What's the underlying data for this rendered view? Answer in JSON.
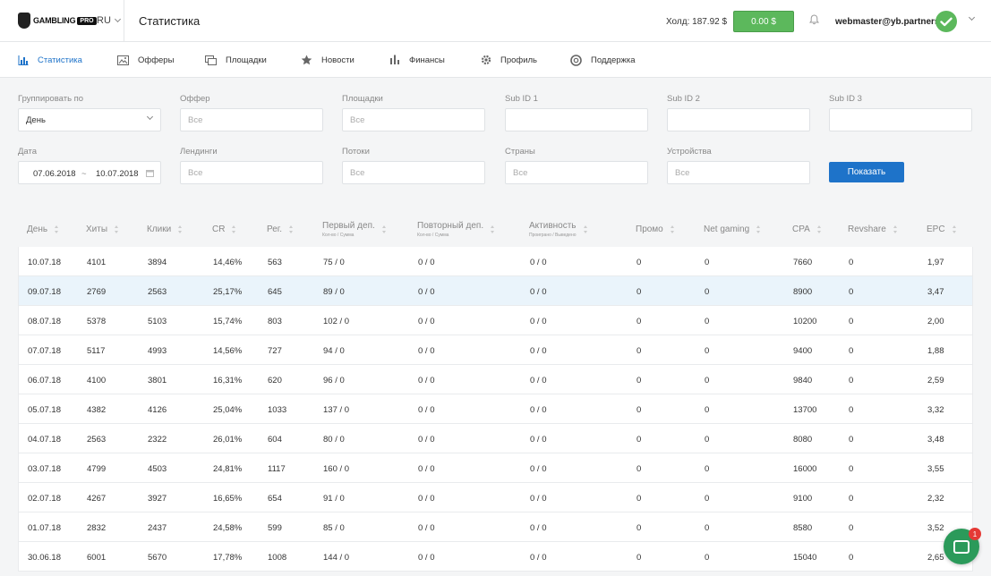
{
  "header": {
    "logo_text": "GAMBLING",
    "logo_badge": "PRO",
    "language": "RU",
    "page_title": "Статистика",
    "hold_label": "Холд: 187.92 $",
    "balance": "0.00 $",
    "email": "webmaster@yb.partners"
  },
  "nav": [
    {
      "label": "Статистика",
      "icon": "bar-chart-icon",
      "active": true
    },
    {
      "label": "Офферы",
      "icon": "image-icon"
    },
    {
      "label": "Площадки",
      "icon": "windows-icon"
    },
    {
      "label": "Новости",
      "icon": "star-icon"
    },
    {
      "label": "Финансы",
      "icon": "finance-chart-icon"
    },
    {
      "label": "Профиль",
      "icon": "gear-icon"
    },
    {
      "label": "Поддержка",
      "icon": "support-icon"
    }
  ],
  "filters": {
    "group_by": {
      "label": "Группировать по",
      "value": "День"
    },
    "offer": {
      "label": "Оффер",
      "placeholder": "Все"
    },
    "sites": {
      "label": "Площадки",
      "placeholder": "Все"
    },
    "sub1": {
      "label": "Sub ID 1",
      "value": ""
    },
    "sub2": {
      "label": "Sub ID 2",
      "value": ""
    },
    "sub3": {
      "label": "Sub ID 3",
      "value": ""
    },
    "date": {
      "label": "Дата",
      "from": "07.06.2018",
      "sep": "~",
      "to": "10.07.2018"
    },
    "landings": {
      "label": "Лендинги",
      "placeholder": "Все"
    },
    "streams": {
      "label": "Потоки",
      "placeholder": "Все"
    },
    "countries": {
      "label": "Страны",
      "placeholder": "Все"
    },
    "devices": {
      "label": "Устройства",
      "placeholder": "Все"
    },
    "show_button": "Показать"
  },
  "table": {
    "columns": [
      {
        "label": "День"
      },
      {
        "label": "Хиты"
      },
      {
        "label": "Клики"
      },
      {
        "label": "CR"
      },
      {
        "label": "Рег."
      },
      {
        "label": "Первый деп.",
        "sub": "Кол-во / Сумма"
      },
      {
        "label": "Повторный деп.",
        "sub": "Кол-во / Сумма"
      },
      {
        "label": "Активность",
        "sub": "Проиграно / Выведено"
      },
      {
        "label": "Промо"
      },
      {
        "label": "Net gaming"
      },
      {
        "label": "CPA"
      },
      {
        "label": "Revshare"
      },
      {
        "label": "EPC"
      }
    ],
    "rows": [
      [
        "10.07.18",
        "4101",
        "3894",
        "14,46%",
        "563",
        "75 / 0",
        "0 / 0",
        "0 / 0",
        "0",
        "0",
        "7660",
        "0",
        "1,97"
      ],
      [
        "09.07.18",
        "2769",
        "2563",
        "25,17%",
        "645",
        "89 / 0",
        "0 / 0",
        "0 / 0",
        "0",
        "0",
        "8900",
        "0",
        "3,47"
      ],
      [
        "08.07.18",
        "5378",
        "5103",
        "15,74%",
        "803",
        "102 / 0",
        "0 / 0",
        "0 / 0",
        "0",
        "0",
        "10200",
        "0",
        "2,00"
      ],
      [
        "07.07.18",
        "5117",
        "4993",
        "14,56%",
        "727",
        "94 / 0",
        "0 / 0",
        "0 / 0",
        "0",
        "0",
        "9400",
        "0",
        "1,88"
      ],
      [
        "06.07.18",
        "4100",
        "3801",
        "16,31%",
        "620",
        "96 / 0",
        "0 / 0",
        "0 / 0",
        "0",
        "0",
        "9840",
        "0",
        "2,59"
      ],
      [
        "05.07.18",
        "4382",
        "4126",
        "25,04%",
        "1033",
        "137 / 0",
        "0 / 0",
        "0 / 0",
        "0",
        "0",
        "13700",
        "0",
        "3,32"
      ],
      [
        "04.07.18",
        "2563",
        "2322",
        "26,01%",
        "604",
        "80 / 0",
        "0 / 0",
        "0 / 0",
        "0",
        "0",
        "8080",
        "0",
        "3,48"
      ],
      [
        "03.07.18",
        "4799",
        "4503",
        "24,81%",
        "1117",
        "160 / 0",
        "0 / 0",
        "0 / 0",
        "0",
        "0",
        "16000",
        "0",
        "3,55"
      ],
      [
        "02.07.18",
        "4267",
        "3927",
        "16,65%",
        "654",
        "91 / 0",
        "0 / 0",
        "0 / 0",
        "0",
        "0",
        "9100",
        "0",
        "2,32"
      ],
      [
        "01.07.18",
        "2832",
        "2437",
        "24,58%",
        "599",
        "85 / 0",
        "0 / 0",
        "0 / 0",
        "0",
        "0",
        "8580",
        "0",
        "3,52"
      ],
      [
        "30.06.18",
        "6001",
        "5670",
        "17,78%",
        "1008",
        "144 / 0",
        "0 / 0",
        "0 / 0",
        "0",
        "0",
        "15040",
        "0",
        "2,65"
      ]
    ]
  },
  "chat": {
    "badge": "1"
  },
  "colors": {
    "accent": "#1e73c9",
    "success": "#5cb85c",
    "chat": "#2b9a5a",
    "highlight_row": "#eaf4fb"
  }
}
